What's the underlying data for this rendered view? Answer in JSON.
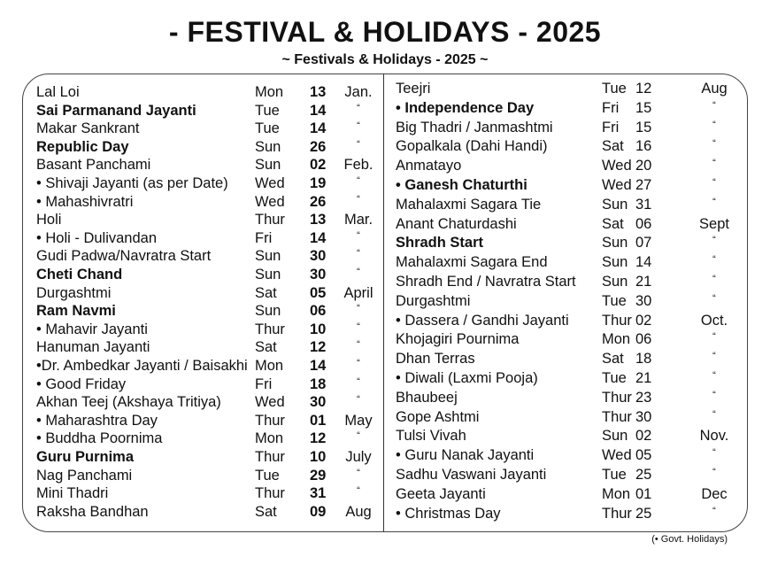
{
  "title": "- FESTIVAL & HOLIDAYS - 2025",
  "subtitle": "~ Festivals & Holidays - 2025 ~",
  "left_column": [
    {
      "name": "Lal Loi",
      "day": "Mon",
      "date": "13",
      "month": "Jan.",
      "bold": false
    },
    {
      "name": "Sai Parmanand Jayanti",
      "day": "Tue",
      "date": "14",
      "month": "“",
      "bold": true
    },
    {
      "name": "Makar Sankrant",
      "day": "Tue",
      "date": "14",
      "month": "“",
      "bold": false
    },
    {
      "name": "Republic Day",
      "day": "Sun",
      "date": "26",
      "month": "“",
      "bold": true
    },
    {
      "name": "Basant Panchami",
      "day": "Sun",
      "date": "02",
      "month": "Feb.",
      "bold": false
    },
    {
      "name": "• Shivaji Jayanti (as per Date)",
      "day": "Wed",
      "date": "19",
      "month": "“",
      "bold": false
    },
    {
      "name": "• Mahashivratri",
      "day": "Wed",
      "date": "26",
      "month": "“",
      "bold": false
    },
    {
      "name": "Holi",
      "day": "Thur",
      "date": "13",
      "month": "Mar.",
      "bold": false
    },
    {
      "name": "• Holi - Dulivandan",
      "day": "Fri",
      "date": "14",
      "month": "“",
      "bold": false
    },
    {
      "name": "Gudi Padwa/Navratra Start",
      "day": "Sun",
      "date": "30",
      "month": "“",
      "bold": false
    },
    {
      "name": "Cheti Chand",
      "day": "Sun",
      "date": "30",
      "month": "“",
      "bold": true
    },
    {
      "name": "Durgashtmi",
      "day": "Sat",
      "date": "05",
      "month": "April",
      "bold": false
    },
    {
      "name": "Ram Navmi",
      "day": "Sun",
      "date": "06",
      "month": "“",
      "bold": true
    },
    {
      "name": "• Mahavir Jayanti",
      "day": "Thur",
      "date": "10",
      "month": "“",
      "bold": false
    },
    {
      "name": "Hanuman Jayanti",
      "day": "Sat",
      "date": "12",
      "month": "“",
      "bold": false
    },
    {
      "name": "•Dr. Ambedkar Jayanti / Baisakhi",
      "day": "Mon",
      "date": "14",
      "month": "“",
      "bold": false
    },
    {
      "name": "• Good Friday",
      "day": "Fri",
      "date": "18",
      "month": "“",
      "bold": false
    },
    {
      "name": "Akhan Teej (Akshaya Tritiya)",
      "day": "Wed",
      "date": "30",
      "month": "“",
      "bold": false
    },
    {
      "name": "• Maharashtra Day",
      "day": "Thur",
      "date": "01",
      "month": "May",
      "bold": false
    },
    {
      "name": "• Buddha Poornima",
      "day": "Mon",
      "date": "12",
      "month": "“",
      "bold": false
    },
    {
      "name": "Guru Purnima",
      "day": "Thur",
      "date": "10",
      "month": "July",
      "bold": true
    },
    {
      "name": "Nag Panchami",
      "day": "Tue",
      "date": "29",
      "month": "“",
      "bold": false
    },
    {
      "name": "Mini Thadri",
      "day": "Thur",
      "date": "31",
      "month": "“",
      "bold": false
    },
    {
      "name": "Raksha Bandhan",
      "day": "Sat",
      "date": "09",
      "month": "Aug",
      "bold": false
    }
  ],
  "right_column": [
    {
      "name": "Teejri",
      "day": "Tue",
      "date": "12",
      "month": "Aug",
      "bold": false
    },
    {
      "name": "• Independence Day",
      "day": "Fri",
      "date": "15",
      "month": "“",
      "bold": true
    },
    {
      "name": "Big Thadri / Janmashtmi",
      "day": "Fri",
      "date": "15",
      "month": "“",
      "bold": false
    },
    {
      "name": "Gopalkala (Dahi Handi)",
      "day": "Sat",
      "date": "16",
      "month": "“",
      "bold": false
    },
    {
      "name": "Anmatayo",
      "day": "Wed",
      "date": "20",
      "month": "“",
      "bold": false
    },
    {
      "name": "• Ganesh Chaturthi",
      "day": "Wed",
      "date": "27",
      "month": "“",
      "bold": true
    },
    {
      "name": "Mahalaxmi Sagara Tie",
      "day": "Sun",
      "date": "31",
      "month": "“",
      "bold": false
    },
    {
      "name": "Anant Chaturdashi",
      "day": "Sat",
      "date": "06",
      "month": "Sept",
      "bold": false
    },
    {
      "name": "Shradh Start",
      "day": "Sun",
      "date": "07",
      "month": "“",
      "bold": true
    },
    {
      "name": "Mahalaxmi Sagara End",
      "day": "Sun",
      "date": "14",
      "month": "“",
      "bold": false
    },
    {
      "name": "Shradh End / Navratra Start",
      "day": "Sun",
      "date": "21",
      "month": "“",
      "bold": false
    },
    {
      "name": "Durgashtmi",
      "day": "Tue",
      "date": "30",
      "month": "“",
      "bold": false
    },
    {
      "name": "• Dassera / Gandhi Jayanti",
      "day": "Thur",
      "date": "02",
      "month": "Oct.",
      "bold": false
    },
    {
      "name": "Khojagiri Pournima",
      "day": "Mon",
      "date": "06",
      "month": "“",
      "bold": false
    },
    {
      "name": "Dhan Terras",
      "day": "Sat",
      "date": "18",
      "month": "“",
      "bold": false
    },
    {
      "name": "• Diwali (Laxmi Pooja)",
      "day": "Tue",
      "date": "21",
      "month": "“",
      "bold": false
    },
    {
      "name": "Bhaubeej",
      "day": "Thur",
      "date": "23",
      "month": "“",
      "bold": false
    },
    {
      "name": "Gope Ashtmi",
      "day": "Thur",
      "date": "30",
      "month": "“",
      "bold": false
    },
    {
      "name": "Tulsi Vivah",
      "day": "Sun",
      "date": "02",
      "month": "Nov.",
      "bold": false
    },
    {
      "name": "• Guru Nanak Jayanti",
      "day": "Wed",
      "date": "05",
      "month": "“",
      "bold": false
    },
    {
      "name": "Sadhu Vaswani Jayanti",
      "day": "Tue",
      "date": "25",
      "month": "“",
      "bold": false
    },
    {
      "name": "Geeta Jayanti",
      "day": "Mon",
      "date": "01",
      "month": "Dec",
      "bold": false
    },
    {
      "name": "• Christmas Day",
      "day": "Thur",
      "date": "25",
      "month": "“",
      "bold": false
    }
  ],
  "footnote": "(• Govt. Holidays)"
}
